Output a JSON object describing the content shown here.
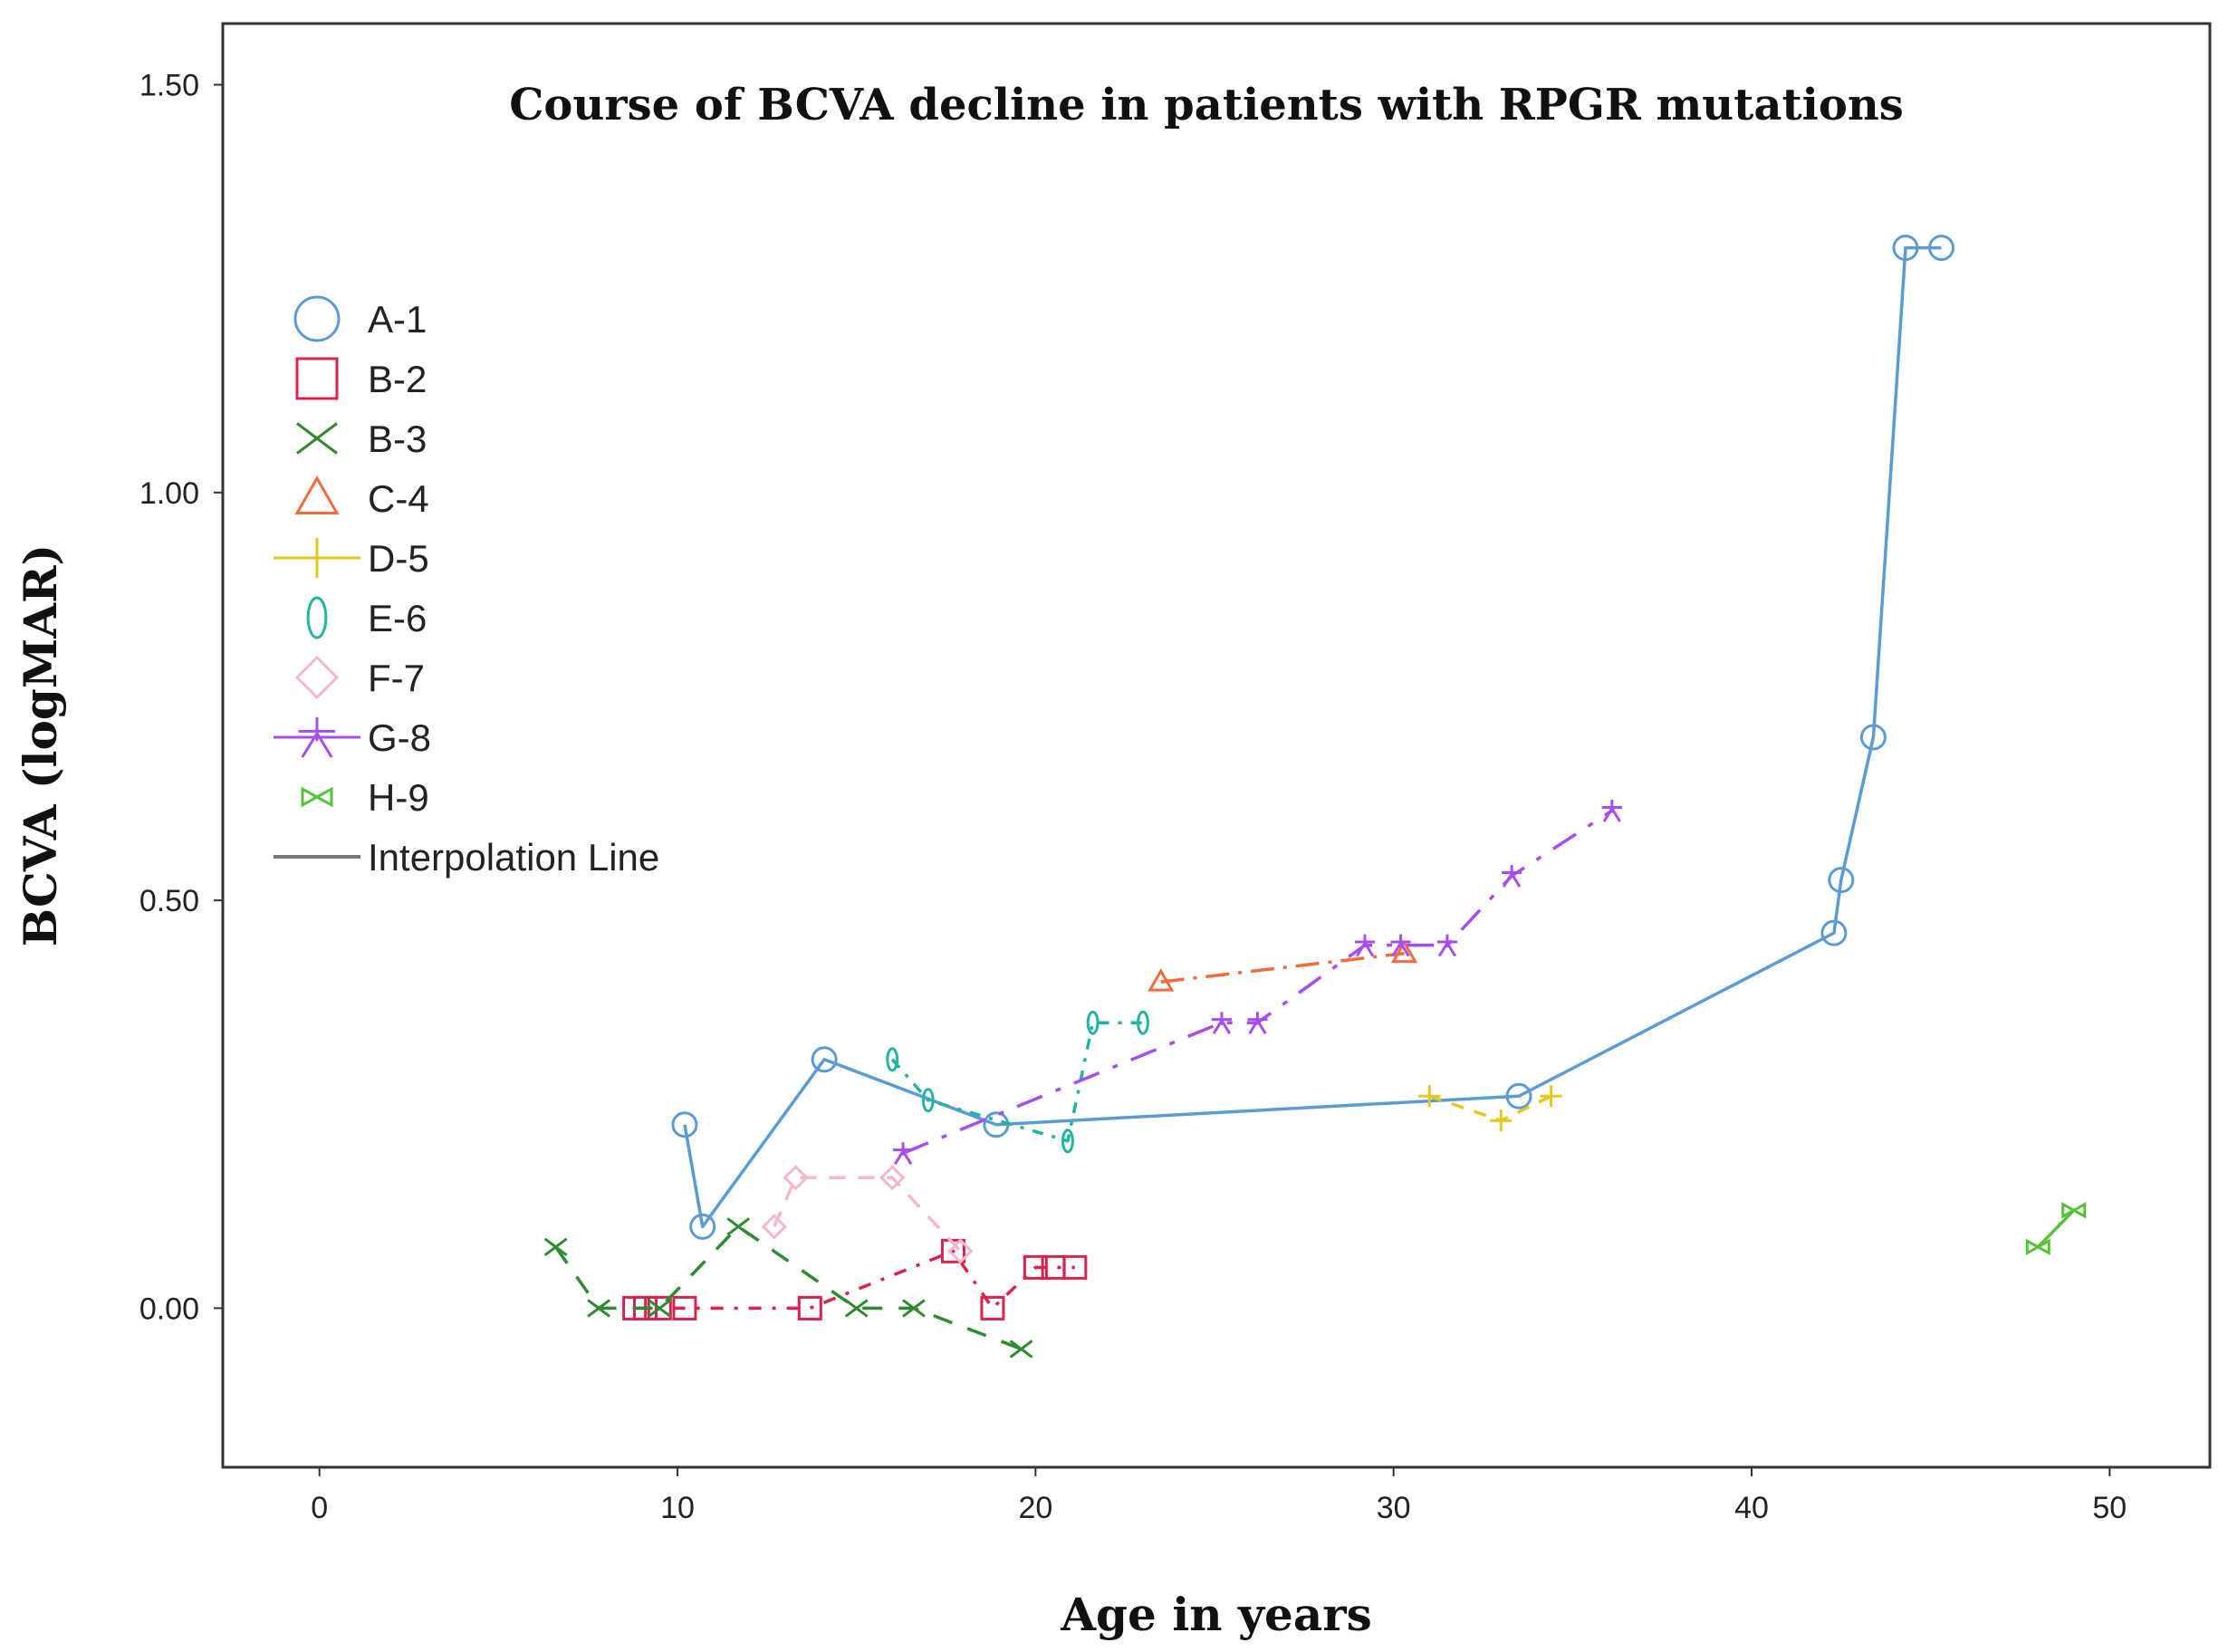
{
  "chart_data": {
    "type": "line",
    "title": "Course of BCVA decline in patients with RPGR mutations",
    "xlabel": "Age in years",
    "ylabel": "BCVA (logMAR)",
    "xlim": [
      -2.7,
      52.8
    ],
    "ylim": [
      -0.195,
      1.575
    ],
    "xticks": [
      0,
      10,
      20,
      30,
      40,
      50
    ],
    "yticks": [
      0.0,
      0.5,
      1.0,
      1.5
    ],
    "xtick_labels": [
      "0",
      "10",
      "20",
      "30",
      "40",
      "50"
    ],
    "ytick_labels": [
      "0.00",
      "0.50",
      "1.00",
      "1.50"
    ],
    "legend_position": "upper-left",
    "interpolation_label": "Interpolation Line",
    "series": [
      {
        "name": "A-1",
        "marker": "circle",
        "color": "#5b9bd5",
        "dash": "",
        "points": [
          [
            10.2,
            0.225
          ],
          [
            10.7,
            0.1
          ],
          [
            14.1,
            0.305
          ],
          [
            18.9,
            0.225
          ],
          [
            33.5,
            0.26
          ],
          [
            42.3,
            0.46
          ],
          [
            42.5,
            0.525
          ],
          [
            43.4,
            0.7
          ],
          [
            44.3,
            1.3
          ],
          [
            45.3,
            1.3
          ]
        ]
      },
      {
        "name": "B-2",
        "marker": "square",
        "color": "#d8234e",
        "dash": "14,12,4,12",
        "points": [
          [
            8.8,
            0.0
          ],
          [
            9.1,
            0.0
          ],
          [
            9.5,
            0.0
          ],
          [
            10.2,
            0.0
          ],
          [
            13.7,
            0.0
          ],
          [
            17.7,
            0.07
          ],
          [
            18.8,
            0.0
          ],
          [
            20.0,
            0.05
          ],
          [
            20.5,
            0.05
          ],
          [
            21.1,
            0.05
          ]
        ]
      },
      {
        "name": "B-3",
        "marker": "x",
        "color": "#2e8b2e",
        "dash": "22,18",
        "points": [
          [
            6.6,
            0.075
          ],
          [
            7.8,
            0.0
          ],
          [
            9.5,
            0.0
          ],
          [
            11.7,
            0.1
          ],
          [
            15.0,
            0.0
          ],
          [
            16.6,
            0.0
          ],
          [
            19.6,
            -0.05
          ]
        ]
      },
      {
        "name": "C-4",
        "marker": "triangle",
        "color": "#f26b3a",
        "dash": "26,10,4,10",
        "points": [
          [
            23.5,
            0.4
          ],
          [
            30.3,
            0.435
          ]
        ]
      },
      {
        "name": "D-5",
        "marker": "plus",
        "color": "#e3c81e",
        "dash": "14,12",
        "points": [
          [
            31.0,
            0.26
          ],
          [
            33.0,
            0.23
          ],
          [
            34.4,
            0.26
          ]
        ]
      },
      {
        "name": "E-6",
        "marker": "ellipse",
        "color": "#1fb5a0",
        "dash": "12,10,4,10",
        "points": [
          [
            16.0,
            0.305
          ],
          [
            17.0,
            0.255
          ],
          [
            20.9,
            0.205
          ],
          [
            21.6,
            0.35
          ],
          [
            23.0,
            0.35
          ]
        ]
      },
      {
        "name": "F-7",
        "marker": "diamond",
        "color": "#f7b6cd",
        "dash": "18,14",
        "points": [
          [
            12.7,
            0.1
          ],
          [
            13.3,
            0.16
          ],
          [
            16.0,
            0.16
          ],
          [
            17.9,
            0.07
          ]
        ]
      },
      {
        "name": "G-8",
        "marker": "asterisk",
        "color": "#a64cf0",
        "dash": "30,16,6,16",
        "points": [
          [
            16.3,
            0.19
          ],
          [
            25.2,
            0.35
          ],
          [
            26.2,
            0.35
          ],
          [
            29.2,
            0.445
          ],
          [
            30.2,
            0.445
          ],
          [
            31.5,
            0.445
          ],
          [
            33.3,
            0.53
          ],
          [
            36.1,
            0.61
          ]
        ]
      },
      {
        "name": "H-9",
        "marker": "bowtie",
        "color": "#55c238",
        "dash": "",
        "points": [
          [
            48.0,
            0.075
          ],
          [
            49.0,
            0.12
          ]
        ]
      }
    ]
  }
}
